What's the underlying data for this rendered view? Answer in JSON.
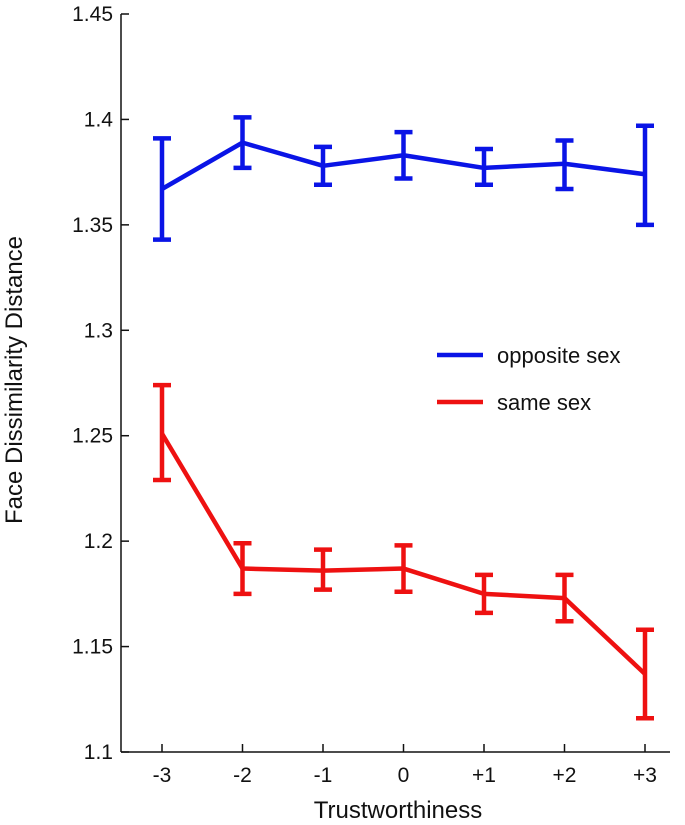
{
  "chart_data": {
    "type": "line",
    "title": "",
    "xlabel": "Trustworthiness",
    "ylabel": "Face Dissimilarity Distance",
    "categories": [
      "-3",
      "-2",
      "-1",
      "0",
      "+1",
      "+2",
      "+3"
    ],
    "ylim": [
      1.1,
      1.45
    ],
    "yticks": [
      "1.1",
      "1.15",
      "1.2",
      "1.25",
      "1.3",
      "1.35",
      "1.4",
      "1.45"
    ],
    "grid": false,
    "legend_position": "right",
    "series": [
      {
        "name": "opposite sex",
        "color": "#0a14e6",
        "values": [
          1.367,
          1.389,
          1.378,
          1.383,
          1.377,
          1.379,
          1.374
        ],
        "err_low": [
          1.343,
          1.377,
          1.369,
          1.372,
          1.369,
          1.367,
          1.35
        ],
        "err_high": [
          1.391,
          1.401,
          1.387,
          1.394,
          1.386,
          1.39,
          1.397
        ]
      },
      {
        "name": "same sex",
        "color": "#ee1111",
        "values": [
          1.251,
          1.187,
          1.186,
          1.187,
          1.175,
          1.173,
          1.137
        ],
        "err_low": [
          1.229,
          1.175,
          1.177,
          1.176,
          1.166,
          1.162,
          1.116
        ],
        "err_high": [
          1.274,
          1.199,
          1.196,
          1.198,
          1.184,
          1.184,
          1.158
        ]
      }
    ]
  }
}
